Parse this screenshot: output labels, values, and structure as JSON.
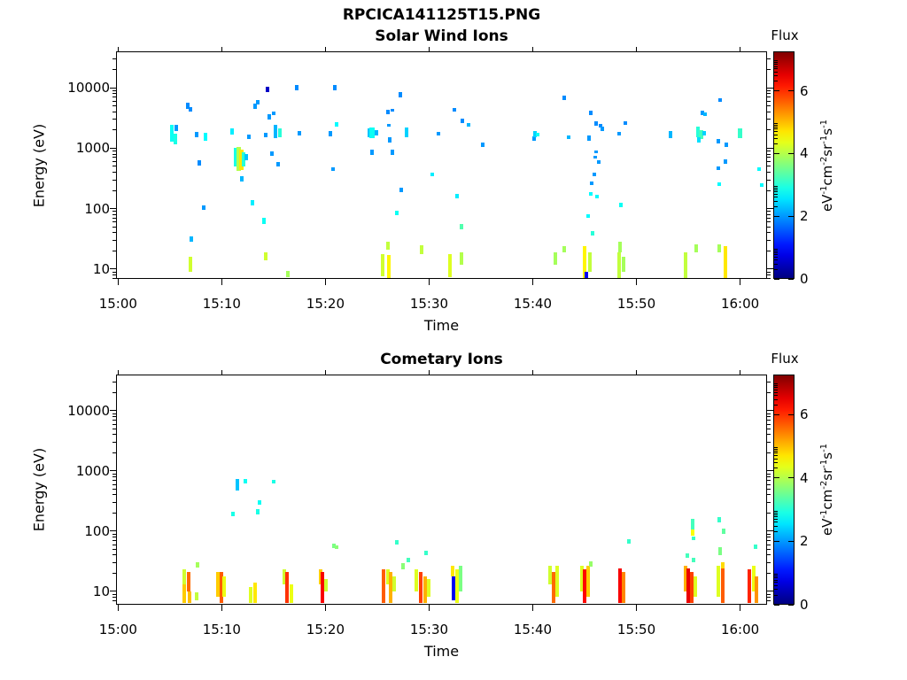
{
  "figure_title": "RPCICA141125T15.PNG",
  "chart_data": [
    {
      "type": "heatmap",
      "title": "Solar Wind Ions",
      "xlabel": "Time",
      "ylabel": "Energy (eV)",
      "x_ticks": [
        {
          "label": "15:00",
          "t": 0
        },
        {
          "label": "15:10",
          "t": 10
        },
        {
          "label": "15:20",
          "t": 20
        },
        {
          "label": "15:30",
          "t": 30
        },
        {
          "label": "15:40",
          "t": 40
        },
        {
          "label": "15:50",
          "t": 50
        },
        {
          "label": "16:00",
          "t": 60
        }
      ],
      "x_range_minutes": [
        -0.2,
        62.6
      ],
      "y_scale": "log",
      "y_ticks": [
        10,
        100,
        1000,
        10000
      ],
      "y_range": [
        6.9,
        40000
      ],
      "grid": false,
      "colorbar": {
        "title": "Flux",
        "ticks": [
          0,
          2,
          4,
          6
        ],
        "max": 7.26,
        "colormap": "jet",
        "unit_parts": [
          [
            "eV",
            "-1"
          ],
          [
            "cm",
            "-2"
          ],
          [
            "sr",
            "-1"
          ],
          [
            "s",
            "-1"
          ]
        ]
      },
      "points": [
        [
          5.2,
          1300,
          2400,
          2.8
        ],
        [
          5.5,
          1150,
          1750,
          2.9
        ],
        [
          5.6,
          1900,
          2400,
          2.0
        ],
        [
          6.7,
          4500,
          5600,
          1.9
        ],
        [
          7.0,
          4000,
          4800,
          1.9
        ],
        [
          7.6,
          1500,
          1850,
          2.0
        ],
        [
          8.4,
          1350,
          1800,
          2.7
        ],
        [
          7.8,
          520,
          640,
          1.9
        ],
        [
          8.3,
          95,
          115,
          2.0
        ],
        [
          7.1,
          28,
          35,
          2.2
        ],
        [
          7.0,
          9,
          16,
          4.2
        ],
        [
          11.0,
          1700,
          2100,
          2.6
        ],
        [
          11.3,
          500,
          1000,
          2.9
        ],
        [
          11.6,
          420,
          1050,
          4.0,
          5
        ],
        [
          11.85,
          430,
          950,
          4.7,
          5
        ],
        [
          12.1,
          500,
          850,
          3.0
        ],
        [
          12.35,
          640,
          800,
          2.3
        ],
        [
          11.9,
          280,
          340,
          2.2
        ],
        [
          12.6,
          1400,
          1700,
          2.0
        ],
        [
          13.0,
          115,
          140,
          2.6
        ],
        [
          13.2,
          4500,
          5400,
          2.0
        ],
        [
          13.5,
          5200,
          6200,
          2.0
        ],
        [
          14.4,
          8500,
          10500,
          0.5
        ],
        [
          14.6,
          3000,
          3600,
          2.0
        ],
        [
          15.0,
          3500,
          4100,
          2.0
        ],
        [
          14.2,
          1500,
          1800,
          2.0
        ],
        [
          14.8,
          760,
          900,
          2.0
        ],
        [
          15.2,
          1450,
          2400,
          2.2
        ],
        [
          15.6,
          1500,
          2100,
          3.0
        ],
        [
          15.4,
          500,
          600,
          2.0
        ],
        [
          14.1,
          55,
          70,
          2.8
        ],
        [
          14.2,
          14,
          19,
          4.2
        ],
        [
          16.4,
          7.5,
          9.5,
          3.9
        ],
        [
          17.2,
          9000,
          11000,
          1.9
        ],
        [
          17.5,
          1600,
          1900,
          2.0
        ],
        [
          20.9,
          9000,
          11000,
          1.9
        ],
        [
          21.1,
          2300,
          2700,
          2.7
        ],
        [
          20.7,
          420,
          480,
          2.0
        ],
        [
          20.5,
          1550,
          1900,
          2.0
        ],
        [
          24.2,
          1500,
          2100,
          2.3
        ],
        [
          24.5,
          1450,
          2200,
          2.8,
          6
        ],
        [
          24.9,
          1600,
          2000,
          2.2
        ],
        [
          24.5,
          780,
          950,
          2.0
        ],
        [
          26.0,
          3700,
          4300,
          1.9
        ],
        [
          26.5,
          4000,
          4500,
          1.9
        ],
        [
          26.1,
          2250,
          2500,
          2.0
        ],
        [
          26.2,
          1250,
          1500,
          2.0
        ],
        [
          27.2,
          7000,
          8500,
          1.9
        ],
        [
          27.8,
          1500,
          2200,
          2.4
        ],
        [
          26.5,
          780,
          950,
          2.0
        ],
        [
          27.3,
          190,
          220,
          2.0
        ],
        [
          26.9,
          78,
          92,
          2.8
        ],
        [
          26.0,
          21,
          28,
          4.1
        ],
        [
          25.5,
          7.6,
          18,
          4.2
        ],
        [
          26.1,
          7,
          17,
          4.6
        ],
        [
          29.3,
          18,
          25,
          4.1
        ],
        [
          30.9,
          1600,
          1850,
          2.0
        ],
        [
          32.4,
          4000,
          4700,
          1.9
        ],
        [
          33.2,
          2600,
          3100,
          1.9
        ],
        [
          33.8,
          2250,
          2600,
          2.2
        ],
        [
          30.3,
          350,
          400,
          2.6
        ],
        [
          32.7,
          150,
          175,
          2.6
        ],
        [
          33.1,
          45,
          55,
          3.3
        ],
        [
          32.0,
          7.5,
          18,
          4.3
        ],
        [
          33.1,
          12,
          19,
          4.0
        ],
        [
          35.2,
          1050,
          1250,
          2.0
        ],
        [
          40.1,
          1350,
          1550,
          2.0
        ],
        [
          40.2,
          1500,
          1900,
          2.4
        ],
        [
          40.45,
          1550,
          1800,
          2.8
        ],
        [
          43.0,
          6300,
          7500,
          1.9
        ],
        [
          43.5,
          1400,
          1650,
          2.2
        ],
        [
          42.2,
          12,
          19,
          3.9
        ],
        [
          43.0,
          19,
          24,
          3.9
        ],
        [
          45.6,
          3500,
          4200,
          1.9
        ],
        [
          46.1,
          2350,
          2750,
          1.9
        ],
        [
          46.5,
          2200,
          2500,
          1.9
        ],
        [
          46.7,
          1950,
          2250,
          2.0
        ],
        [
          45.4,
          1350,
          1600,
          2.0
        ],
        [
          46.1,
          820,
          930,
          2.0
        ],
        [
          46.0,
          670,
          760,
          2.0
        ],
        [
          46.4,
          560,
          640,
          2.0
        ],
        [
          45.9,
          350,
          400,
          2.0
        ],
        [
          45.7,
          250,
          285,
          2.0
        ],
        [
          45.6,
          165,
          190,
          2.7
        ],
        [
          46.2,
          150,
          170,
          2.7
        ],
        [
          45.3,
          70,
          82,
          2.7
        ],
        [
          45.8,
          36,
          43,
          3.0
        ],
        [
          45.0,
          7,
          24,
          4.6
        ],
        [
          45.15,
          6.5,
          9,
          0.8
        ],
        [
          45.5,
          9,
          19,
          4.1
        ],
        [
          48.3,
          1600,
          1850,
          2.0
        ],
        [
          48.9,
          2400,
          2750,
          1.9
        ],
        [
          48.5,
          105,
          125,
          2.8
        ],
        [
          48.4,
          19,
          28,
          3.9
        ],
        [
          48.3,
          7,
          19,
          4.1
        ],
        [
          48.8,
          9,
          16,
          3.9
        ],
        [
          53.3,
          1450,
          1900,
          2.2
        ],
        [
          55.9,
          1500,
          2300,
          3.0
        ],
        [
          56.2,
          1400,
          2000,
          3.2,
          5
        ],
        [
          56.5,
          1600,
          1900,
          2.4
        ],
        [
          56.0,
          1250,
          1500,
          2.5
        ],
        [
          56.4,
          3500,
          4200,
          2.0
        ],
        [
          56.6,
          3400,
          3900,
          2.2
        ],
        [
          58.1,
          5800,
          6800,
          1.9
        ],
        [
          57.9,
          1200,
          1400,
          2.0
        ],
        [
          58.7,
          1050,
          1250,
          2.0
        ],
        [
          58.6,
          560,
          650,
          2.0
        ],
        [
          57.9,
          440,
          500,
          2.0
        ],
        [
          58.0,
          235,
          270,
          2.7
        ],
        [
          54.7,
          6.5,
          19,
          4.1
        ],
        [
          55.8,
          19,
          26,
          3.9
        ],
        [
          58.0,
          19,
          26,
          3.9
        ],
        [
          58.6,
          7,
          24,
          4.7
        ],
        [
          60.0,
          1450,
          2100,
          3.1,
          5
        ],
        [
          61.8,
          420,
          480,
          2.7
        ],
        [
          62.1,
          230,
          260,
          2.7
        ]
      ]
    },
    {
      "type": "heatmap",
      "title": "Cometary Ions",
      "xlabel": "Time",
      "ylabel": "Energy (eV)",
      "x_ticks": [
        {
          "label": "15:00",
          "t": 0
        },
        {
          "label": "15:10",
          "t": 10
        },
        {
          "label": "15:20",
          "t": 20
        },
        {
          "label": "15:30",
          "t": 30
        },
        {
          "label": "15:40",
          "t": 40
        },
        {
          "label": "15:50",
          "t": 50
        },
        {
          "label": "16:00",
          "t": 60
        }
      ],
      "x_range_minutes": [
        -0.2,
        62.6
      ],
      "y_scale": "log",
      "y_ticks": [
        10,
        100,
        1000,
        10000
      ],
      "y_range": [
        6.0,
        40000
      ],
      "grid": false,
      "colorbar": {
        "title": "Flux",
        "ticks": [
          0,
          2,
          4,
          6
        ],
        "max": 7.26,
        "colormap": "jet",
        "unit_parts": [
          [
            "eV",
            "-1"
          ],
          [
            "cm",
            "-2"
          ],
          [
            "sr",
            "-1"
          ],
          [
            "s",
            "-1"
          ]
        ]
      },
      "points": [
        [
          6.4,
          13,
          23,
          4.2
        ],
        [
          6.4,
          6.5,
          13,
          4.9
        ],
        [
          6.8,
          10,
          21,
          5.6
        ],
        [
          6.85,
          6.5,
          10,
          5.0
        ],
        [
          7.6,
          7,
          9.5,
          4.1
        ],
        [
          7.7,
          25,
          31,
          3.9
        ],
        [
          9.6,
          8,
          21,
          4.9
        ],
        [
          10.0,
          6.5,
          21,
          5.7
        ],
        [
          10.2,
          8,
          18,
          4.4
        ],
        [
          11.1,
          180,
          210,
          2.9
        ],
        [
          11.5,
          470,
          740,
          2.3
        ],
        [
          12.3,
          620,
          740,
          2.8
        ],
        [
          13.5,
          190,
          230,
          2.9
        ],
        [
          13.6,
          280,
          330,
          2.8
        ],
        [
          15.0,
          620,
          720,
          2.9
        ],
        [
          12.8,
          6.5,
          12,
          4.3
        ],
        [
          13.2,
          6.5,
          14,
          4.7
        ],
        [
          16.0,
          13,
          23,
          4.2
        ],
        [
          16.3,
          6.5,
          21,
          6.0
        ],
        [
          16.7,
          6.5,
          13,
          4.4
        ],
        [
          19.5,
          13,
          23,
          4.9
        ],
        [
          19.75,
          6.5,
          21,
          6.4
        ],
        [
          20.05,
          10,
          16,
          4.2
        ],
        [
          20.8,
          52,
          62,
          3.6
        ],
        [
          21.1,
          50,
          58,
          3.7
        ],
        [
          25.6,
          6.5,
          23,
          5.7
        ],
        [
          26.0,
          13,
          23,
          4.3
        ],
        [
          26.3,
          6.5,
          21,
          5.1
        ],
        [
          26.6,
          10,
          18,
          4.2
        ],
        [
          26.9,
          60,
          72,
          3.1
        ],
        [
          27.5,
          23,
          29,
          3.7
        ],
        [
          28.0,
          30,
          36,
          3.2
        ],
        [
          28.8,
          10,
          23,
          4.3
        ],
        [
          29.2,
          6.5,
          21,
          5.9
        ],
        [
          29.6,
          6.5,
          18,
          5.1
        ],
        [
          30.0,
          8,
          16,
          4.3
        ],
        [
          29.7,
          40,
          48,
          3.1
        ],
        [
          32.3,
          18,
          27,
          4.7
        ],
        [
          32.35,
          7,
          18,
          0.8
        ],
        [
          32.7,
          6.5,
          23,
          4.4
        ],
        [
          33.05,
          10,
          27,
          3.6
        ],
        [
          41.7,
          13,
          27,
          4.2
        ],
        [
          42.0,
          6.5,
          21,
          5.6
        ],
        [
          42.35,
          8,
          27,
          4.3
        ],
        [
          44.7,
          10,
          27,
          4.3
        ],
        [
          45.0,
          6.5,
          23,
          6.3
        ],
        [
          45.35,
          8,
          27,
          4.9
        ],
        [
          45.6,
          26,
          32,
          3.8
        ],
        [
          48.4,
          6.5,
          24,
          6.4
        ],
        [
          48.75,
          6.5,
          21,
          5.4
        ],
        [
          49.3,
          62,
          74,
          3.1
        ],
        [
          54.7,
          10,
          27,
          5.1
        ],
        [
          55.0,
          6.5,
          24,
          6.5
        ],
        [
          55.35,
          6.5,
          21,
          5.9
        ],
        [
          55.65,
          8,
          18,
          4.3
        ],
        [
          54.9,
          36,
          43,
          3.2
        ],
        [
          55.4,
          105,
          160,
          3.2
        ],
        [
          55.45,
          85,
          105,
          4.5
        ],
        [
          55.5,
          70,
          82,
          3.1
        ],
        [
          55.5,
          30,
          36,
          3.2
        ],
        [
          57.9,
          8,
          27,
          4.3
        ],
        [
          58.3,
          6.5,
          24,
          5.7
        ],
        [
          58.35,
          24,
          30,
          4.8
        ],
        [
          58.4,
          90,
          110,
          3.4
        ],
        [
          58.0,
          140,
          170,
          3.1
        ],
        [
          58.1,
          40,
          55,
          3.6
        ],
        [
          60.9,
          6.5,
          23,
          6.1
        ],
        [
          61.3,
          10,
          27,
          4.4
        ],
        [
          61.6,
          6.5,
          18,
          5.3
        ],
        [
          61.5,
          50,
          60,
          3.1
        ]
      ]
    }
  ]
}
